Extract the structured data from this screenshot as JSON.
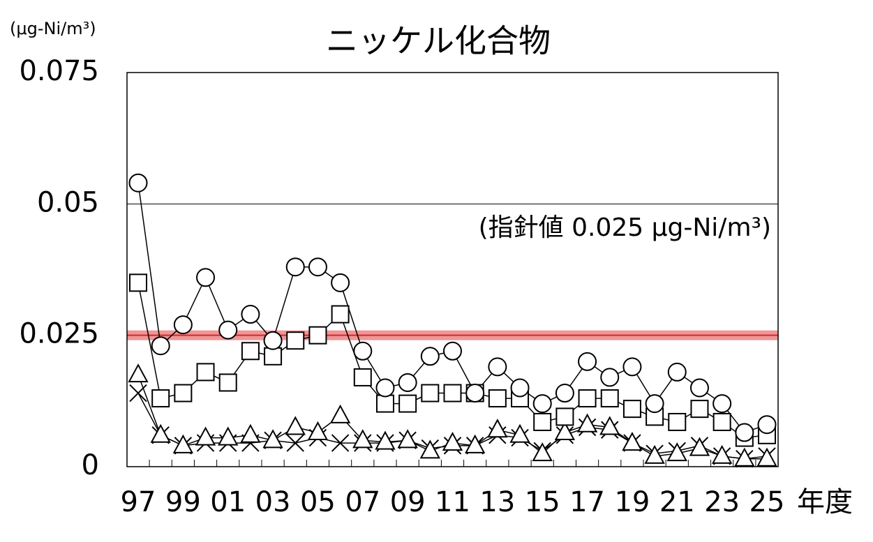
{
  "chart_data": {
    "type": "line",
    "title": "ニッケル化合物",
    "y_label": "(μg-Ni/m³)",
    "x_label": "年度",
    "categories": [
      "97",
      null,
      "99",
      null,
      "01",
      null,
      "03",
      null,
      "05",
      null,
      "07",
      null,
      "09",
      null,
      "11",
      null,
      "13",
      null,
      "15",
      null,
      "17",
      null,
      "19",
      null,
      "21",
      null,
      "23",
      null,
      "25"
    ],
    "ylim": [
      0,
      0.075
    ],
    "yticks": [
      0,
      0.025,
      0.05,
      0.075
    ],
    "grid": true,
    "reference_line": {
      "value": 0.025,
      "label": "(指針値 0.025 μg-Ni/m³)",
      "color": "#e8696b"
    },
    "series": [
      {
        "marker": "circle",
        "color": "#000000",
        "values": [
          0.054,
          0.023,
          0.027,
          0.036,
          0.026,
          0.029,
          0.024,
          0.038,
          0.038,
          0.035,
          0.022,
          0.015,
          0.016,
          0.021,
          0.022,
          0.014,
          0.019,
          0.015,
          0.012,
          0.014,
          0.02,
          0.017,
          0.019,
          0.012,
          0.018,
          0.015,
          0.012,
          0.0065,
          0.008
        ]
      },
      {
        "marker": "square",
        "color": "#000000",
        "values": [
          0.035,
          0.013,
          0.014,
          0.018,
          0.016,
          0.022,
          0.021,
          0.024,
          0.025,
          0.029,
          0.017,
          0.012,
          0.012,
          0.014,
          0.014,
          0.014,
          0.013,
          0.013,
          0.0085,
          0.0095,
          0.013,
          0.013,
          0.011,
          0.0095,
          0.0085,
          0.011,
          0.0085,
          0.0055,
          0.006
        ]
      },
      {
        "marker": "triangle",
        "color": "#000000",
        "values": [
          0.0175,
          0.006,
          0.004,
          0.0055,
          0.0055,
          0.006,
          0.005,
          0.0075,
          0.0065,
          0.0097,
          0.005,
          0.0047,
          0.005,
          0.003,
          0.0045,
          0.004,
          0.007,
          0.006,
          0.0025,
          0.0065,
          0.008,
          0.0075,
          0.0045,
          0.002,
          0.0025,
          0.0035,
          0.002,
          0.0015,
          0.0015
        ]
      },
      {
        "marker": "cross",
        "color": "#000000",
        "values": [
          0.014,
          0.006,
          0.004,
          0.0045,
          0.0045,
          0.0045,
          0.005,
          0.0045,
          0.0055,
          0.0045,
          0.0045,
          0.0045,
          0.005,
          0.0035,
          0.004,
          0.004,
          0.006,
          0.0055,
          0.003,
          0.006,
          0.0075,
          0.007,
          0.0045,
          0.0025,
          0.003,
          0.004,
          0.002,
          0.0015,
          0.002
        ]
      }
    ]
  }
}
